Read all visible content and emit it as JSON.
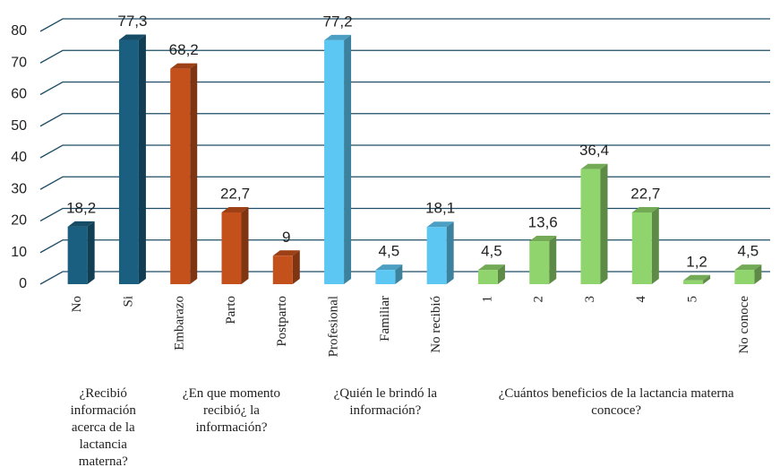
{
  "chart_data": {
    "type": "bar3d",
    "categories": [
      "No",
      "Si",
      "Embarazo",
      "Parto",
      "Postparto",
      "Profesional",
      "Familiar",
      "No recibió",
      "1",
      "2",
      "3",
      "4",
      "5",
      "No conoce"
    ],
    "series": [
      {
        "name": "¿Recibió información acerca de la lactancia materna?",
        "color": "#1b5f80",
        "values": [
          18.2,
          77.3,
          null,
          null,
          null,
          null,
          null,
          null,
          null,
          null,
          null,
          null,
          null,
          null
        ],
        "value_labels": [
          "18,2",
          "77,3",
          null,
          null,
          null,
          null,
          null,
          null,
          null,
          null,
          null,
          null,
          null,
          null
        ]
      },
      {
        "name": "¿En que momento recibió¿ la información?",
        "color": "#c4501b",
        "values": [
          null,
          null,
          68.2,
          22.7,
          9,
          null,
          null,
          null,
          null,
          null,
          null,
          null,
          null,
          null
        ],
        "value_labels": [
          null,
          null,
          "68,2",
          "22,7",
          "9",
          null,
          null,
          null,
          null,
          null,
          null,
          null,
          null,
          null
        ]
      },
      {
        "name": "¿Quién le brindó la información?",
        "color": "#5cc7f2",
        "values": [
          null,
          null,
          null,
          null,
          null,
          77.2,
          4.5,
          18.1,
          null,
          null,
          null,
          null,
          null,
          null
        ],
        "value_labels": [
          null,
          null,
          null,
          null,
          null,
          "77,2",
          "4,5",
          "18,1",
          null,
          null,
          null,
          null,
          null,
          null
        ]
      },
      {
        "name": "¿Cuántos  beneficios de la lactancia materna concoce?",
        "color": "#8fd46c",
        "values": [
          null,
          null,
          null,
          null,
          null,
          null,
          null,
          null,
          4.5,
          13.6,
          36.4,
          22.7,
          1.2,
          4.5
        ],
        "value_labels": [
          null,
          null,
          null,
          null,
          null,
          null,
          null,
          null,
          "4,5",
          "13,6",
          "36,4",
          "22,7",
          "1,2",
          "4,5"
        ]
      }
    ],
    "ylim": [
      0,
      80
    ],
    "yticks": [
      0,
      10,
      20,
      30,
      40,
      50,
      60,
      70,
      80
    ],
    "grid": true
  }
}
